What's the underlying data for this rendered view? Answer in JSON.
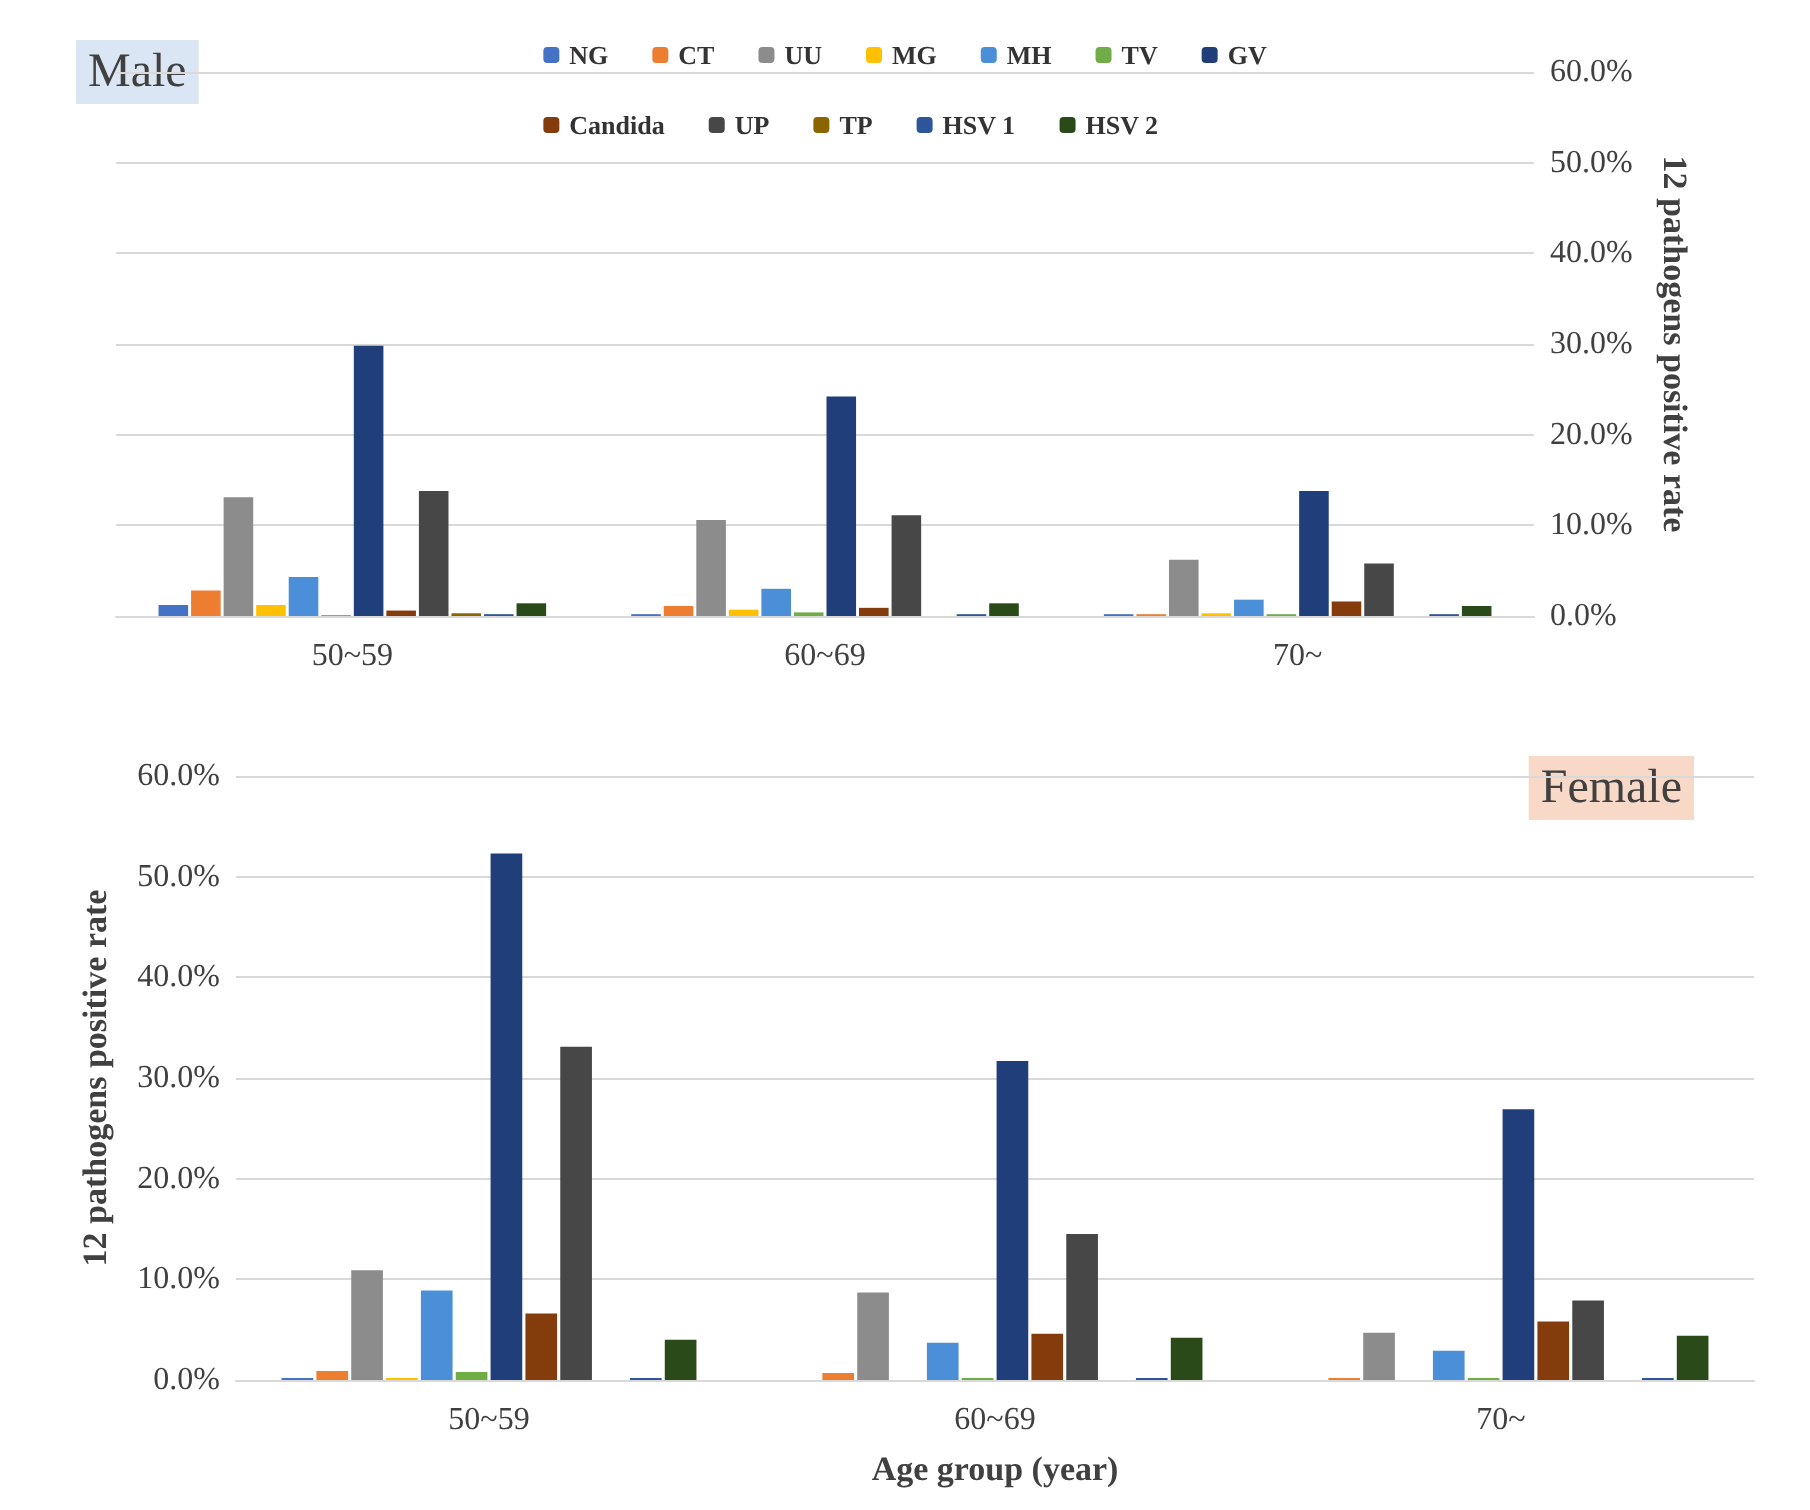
{
  "chart_data": [
    {
      "type": "bar",
      "categories": [
        "50~59",
        "60~69",
        "70~"
      ],
      "y2label": "12 pathogens positive rate",
      "y2lim": [
        0,
        60
      ],
      "y2ticks": [
        {
          "value": 0,
          "label": "0.0%"
        },
        {
          "value": 10,
          "label": "10.0%"
        },
        {
          "value": 20,
          "label": "20.0%"
        },
        {
          "value": 30,
          "label": "30.0%"
        },
        {
          "value": 40,
          "label": "40.0%"
        },
        {
          "value": 50,
          "label": "50.0%"
        },
        {
          "value": 60,
          "label": "60.0%"
        }
      ],
      "grid": "y",
      "legend": "top",
      "annotations": [
        "Male"
      ],
      "series": [
        {
          "name": "NG",
          "color": "#4472c4",
          "axis": "y2",
          "values": [
            1.2,
            0.2,
            0.2
          ]
        },
        {
          "name": "CT",
          "color": "#ed7d31",
          "axis": "y2",
          "values": [
            2.8,
            1.1,
            0.2
          ]
        },
        {
          "name": "UU",
          "color": "#8c8c8c",
          "axis": "y2",
          "values": [
            13.1,
            10.6,
            6.2
          ]
        },
        {
          "name": "MG",
          "color": "#ffc000",
          "axis": "y2",
          "values": [
            1.2,
            0.7,
            0.3
          ]
        },
        {
          "name": "MH",
          "color": "#4a8fd8",
          "axis": "y2",
          "values": [
            4.3,
            3.0,
            1.8
          ]
        },
        {
          "name": "TV",
          "color": "#70ad47",
          "axis": "y2",
          "values": [
            0.1,
            0.4,
            0.2
          ]
        },
        {
          "name": "GV",
          "color": "#203e7a",
          "axis": "y2",
          "values": [
            29.8,
            24.2,
            13.8
          ]
        },
        {
          "name": "Candida",
          "color": "#843c0c",
          "axis": "y2",
          "values": [
            0.6,
            0.9,
            1.6
          ]
        },
        {
          "name": "UP",
          "color": "#474747",
          "axis": "y2",
          "values": [
            13.8,
            11.1,
            5.8
          ]
        },
        {
          "name": "TP",
          "color": "#8a6500",
          "axis": "y2",
          "values": [
            0.3,
            0,
            0
          ]
        },
        {
          "name": "HSV 1",
          "color": "#2e5597",
          "axis": "y2",
          "values": [
            0.2,
            0.2,
            0.2
          ]
        },
        {
          "name": "HSV 2",
          "color": "#2b4a1a",
          "axis": "y2",
          "values": [
            1.4,
            1.4,
            1.1
          ]
        }
      ]
    },
    {
      "type": "bar",
      "categories": [
        "50~59",
        "60~69",
        "70~"
      ],
      "xlabel": "Age group (year)",
      "ylabel": "12 pathogens positive rate",
      "ylim": [
        0,
        60
      ],
      "yticks": [
        {
          "value": 0,
          "label": "0.0%"
        },
        {
          "value": 10,
          "label": "10.0%"
        },
        {
          "value": 20,
          "label": "20.0%"
        },
        {
          "value": 30,
          "label": "30.0%"
        },
        {
          "value": 40,
          "label": "40.0%"
        },
        {
          "value": 50,
          "label": "50.0%"
        },
        {
          "value": 60,
          "label": "60.0%"
        }
      ],
      "grid": "y",
      "annotations": [
        "Female"
      ],
      "series": [
        {
          "color": "#4472c4",
          "values": [
            0.2,
            0,
            0
          ]
        },
        {
          "color": "#ed7d31",
          "values": [
            0.9,
            0.7,
            0.2
          ]
        },
        {
          "color": "#8c8c8c",
          "values": [
            10.9,
            8.7,
            4.7
          ]
        },
        {
          "color": "#ffc000",
          "values": [
            0.2,
            0,
            0
          ]
        },
        {
          "color": "#4a8fd8",
          "values": [
            8.9,
            3.7,
            2.9
          ]
        },
        {
          "color": "#70ad47",
          "values": [
            0.8,
            0.2,
            0.2
          ]
        },
        {
          "color": "#203e7a",
          "values": [
            52.3,
            31.7,
            26.9
          ]
        },
        {
          "color": "#843c0c",
          "values": [
            6.6,
            4.6,
            5.8
          ]
        },
        {
          "color": "#474747",
          "values": [
            33.1,
            14.5,
            7.9
          ]
        },
        {
          "color": "#8a6500",
          "values": [
            0,
            0,
            0
          ]
        },
        {
          "color": "#2e5597",
          "values": [
            0.2,
            0.2,
            0.2
          ]
        },
        {
          "color": "#2b4a1a",
          "values": [
            4.0,
            4.2,
            4.4
          ]
        }
      ]
    }
  ]
}
